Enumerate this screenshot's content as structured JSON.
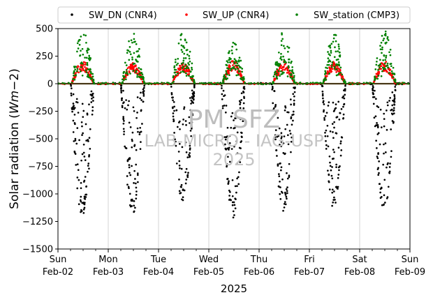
{
  "chart_data": {
    "type": "scatter",
    "title": "",
    "xlabel": "2025",
    "ylabel_main": "Solar radiation (",
    "ylabel_unit": "Wm",
    "ylabel_exp": "−2)",
    "ylim": [
      -1500,
      500
    ],
    "yticks": [
      500,
      250,
      0,
      -250,
      -500,
      -750,
      -1000,
      -1250,
      -1500
    ],
    "ytick_labels": [
      "500",
      "250",
      "0",
      "−250",
      "−500",
      "−750",
      "−1000",
      "−1250",
      "−1500"
    ],
    "xrange_days": [
      "Feb-02",
      "Feb-09"
    ],
    "xticks": [
      {
        "day": "Sun",
        "date": "Feb-02"
      },
      {
        "day": "Mon",
        "date": "Feb-03"
      },
      {
        "day": "Tue",
        "date": "Feb-04"
      },
      {
        "day": "Wed",
        "date": "Feb-05"
      },
      {
        "day": "Thu",
        "date": "Feb-06"
      },
      {
        "day": "Fri",
        "date": "Feb-07"
      },
      {
        "day": "Sat",
        "date": "Feb-08"
      },
      {
        "day": "Sun",
        "date": "Feb-09"
      }
    ],
    "grid": "vertical at day boundaries",
    "legend_placement": "top (above plot)",
    "series": [
      {
        "name": "SW_DN (CNR4)",
        "color": "#000000",
        "daily_min": [
          -1220,
          -1200,
          -1080,
          -1230,
          -1170,
          -1140,
          -1160
        ]
      },
      {
        "name": "SW_UP (CNR4)",
        "color": "#ff0000",
        "daily_max": [
          210,
          190,
          190,
          210,
          200,
          200,
          210
        ]
      },
      {
        "name": "SW_station (CMP3)",
        "color": "#008000",
        "daily_max": [
          490,
          480,
          490,
          380,
          490,
          470,
          490
        ]
      }
    ],
    "watermark": [
      "PM SFZ",
      "LAB-MICRO - IAG-USP",
      "2025"
    ]
  }
}
